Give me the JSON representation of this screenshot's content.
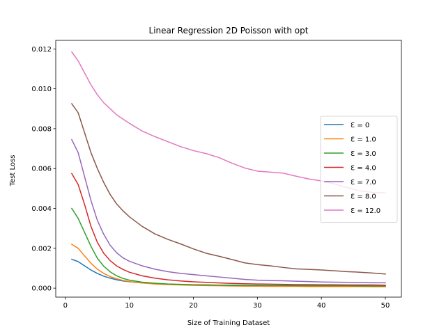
{
  "chart_data": {
    "type": "line",
    "title": "Linear Regression 2D Poisson with opt",
    "xlabel": "Size of Training Dataset",
    "ylabel": "Test Loss",
    "xlim": [
      -1.5,
      52.5
    ],
    "ylim": [
      -0.00045,
      0.01243
    ],
    "x_ticks": [
      0,
      10,
      20,
      30,
      40,
      50
    ],
    "y_ticks": [
      0.0,
      0.002,
      0.004,
      0.006,
      0.008,
      0.01,
      0.012
    ],
    "y_tick_labels": [
      "0.000",
      "0.002",
      "0.004",
      "0.006",
      "0.008",
      "0.010",
      "0.012"
    ],
    "grid": false,
    "legend_position": "center-right",
    "x": [
      1,
      2,
      3,
      4,
      5,
      6,
      7,
      8,
      9,
      10,
      12,
      14,
      16,
      18,
      20,
      22,
      24,
      26,
      28,
      30,
      32,
      34,
      36,
      38,
      40,
      42,
      44,
      46,
      48,
      50
    ],
    "series": [
      {
        "name": "Ɛ = 0",
        "color": "#1f77b4",
        "values": [
          0.00145,
          0.00133,
          0.00112,
          0.00091,
          0.00074,
          0.0006,
          0.0005,
          0.00042,
          0.00036,
          0.00032,
          0.00026,
          0.00022,
          0.0002,
          0.00018,
          0.00017,
          0.00016,
          0.00015,
          0.00015,
          0.00014,
          0.00014,
          0.00013,
          0.00013,
          0.00013,
          0.00012,
          0.00012,
          0.00012,
          0.00012,
          0.00012,
          0.00011,
          0.00011
        ]
      },
      {
        "name": "Ɛ = 1.0",
        "color": "#ff7f0e",
        "values": [
          0.0022,
          0.002,
          0.00162,
          0.00125,
          0.00095,
          0.00074,
          0.00058,
          0.00047,
          0.00039,
          0.00033,
          0.00026,
          0.00021,
          0.00018,
          0.00016,
          0.00014,
          0.00013,
          0.00012,
          0.00011,
          0.0001,
          0.0001,
          9e-05,
          9e-05,
          9e-05,
          8e-05,
          8e-05,
          8e-05,
          8e-05,
          8e-05,
          7e-05,
          7e-05
        ]
      },
      {
        "name": "Ɛ = 3.0",
        "color": "#2ca02c",
        "values": [
          0.004,
          0.0035,
          0.0028,
          0.0021,
          0.0015,
          0.0011,
          0.00082,
          0.00062,
          0.00049,
          0.0004,
          0.0003,
          0.00025,
          0.00021,
          0.00019,
          0.00017,
          0.00016,
          0.00015,
          0.00014,
          0.00014,
          0.00013,
          0.00013,
          0.00013,
          0.00012,
          0.00012,
          0.00012,
          0.00012,
          0.00012,
          0.00011,
          0.00011,
          0.00011
        ]
      },
      {
        "name": "Ɛ = 4.0",
        "color": "#d62728",
        "values": [
          0.00575,
          0.0052,
          0.0042,
          0.0031,
          0.0023,
          0.00175,
          0.00138,
          0.00112,
          0.00094,
          0.0008,
          0.00062,
          0.0005,
          0.00042,
          0.00036,
          0.00032,
          0.00029,
          0.00026,
          0.00024,
          0.00022,
          0.00021,
          0.0002,
          0.00019,
          0.00018,
          0.00018,
          0.00017,
          0.00017,
          0.00016,
          0.00016,
          0.00016,
          0.00015
        ]
      },
      {
        "name": "Ɛ = 7.0",
        "color": "#9467bd",
        "values": [
          0.00745,
          0.0068,
          0.0056,
          0.0044,
          0.0034,
          0.0027,
          0.00215,
          0.00178,
          0.00152,
          0.00135,
          0.00112,
          0.00095,
          0.00083,
          0.00074,
          0.00068,
          0.00062,
          0.00056,
          0.0005,
          0.00044,
          0.0004,
          0.00038,
          0.00037,
          0.00035,
          0.00033,
          0.00031,
          0.0003,
          0.00029,
          0.00028,
          0.00027,
          0.00027
        ]
      },
      {
        "name": "Ɛ = 8.0",
        "color": "#8c564b",
        "values": [
          0.00925,
          0.0088,
          0.0078,
          0.0068,
          0.006,
          0.0053,
          0.0047,
          0.00423,
          0.00388,
          0.00358,
          0.0031,
          0.00272,
          0.00245,
          0.00222,
          0.00197,
          0.00175,
          0.0016,
          0.00144,
          0.00127,
          0.00118,
          0.00112,
          0.00104,
          0.00097,
          0.00094,
          0.00091,
          0.00087,
          0.00083,
          0.0008,
          0.00076,
          0.00071
        ]
      },
      {
        "name": "Ɛ = 12.0",
        "color": "#e377c2",
        "values": [
          0.01185,
          0.0114,
          0.0108,
          0.0102,
          0.0097,
          0.0093,
          0.009,
          0.0087,
          0.00848,
          0.00827,
          0.00788,
          0.0076,
          0.00735,
          0.0071,
          0.0069,
          0.00675,
          0.00655,
          0.00627,
          0.00603,
          0.00587,
          0.00582,
          0.00577,
          0.00562,
          0.00548,
          0.00538,
          0.00523,
          0.00505,
          0.00488,
          0.0048,
          0.00478
        ]
      }
    ]
  }
}
